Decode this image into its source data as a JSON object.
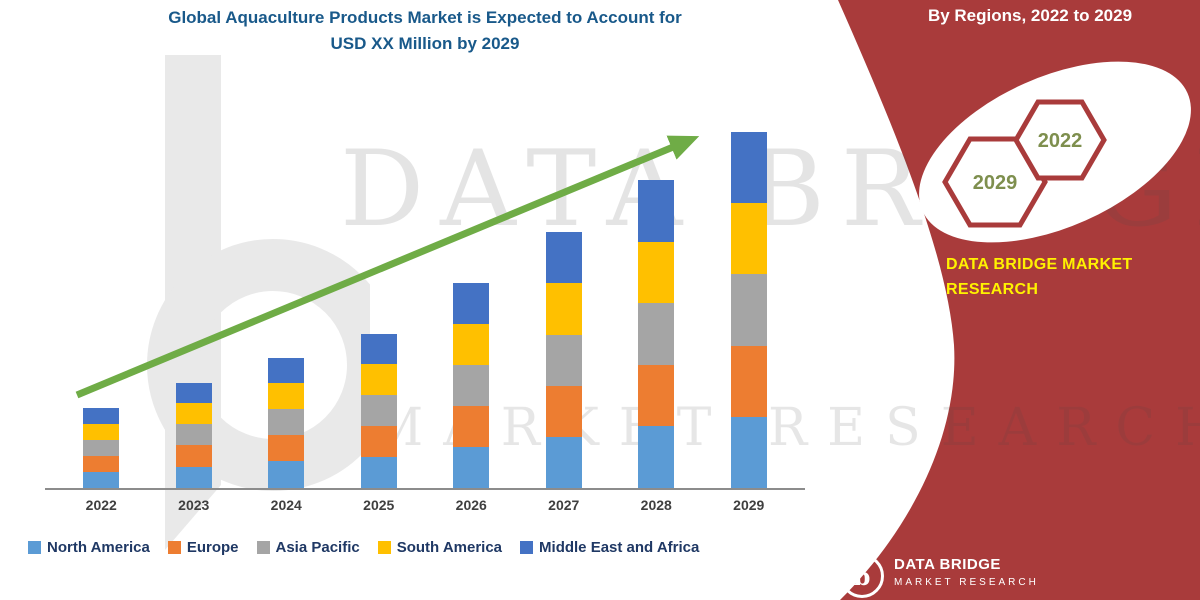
{
  "title": {
    "line1": "Global Aquaculture Products Market is Expected to Account for",
    "line2": "USD XX Million by 2029"
  },
  "banner": {
    "heading": "By Regions, 2022 to 2029",
    "hexagons": [
      {
        "label": "2029"
      },
      {
        "label": "2022"
      }
    ],
    "brand_line1": "DATA BRIDGE MARKET",
    "brand_line2": "RESEARCH",
    "colors": {
      "background": "#A93B3B",
      "heading_text": "#FFFFFF",
      "brand_text": "#FFF200",
      "hexagon_border": "#A93B3B",
      "hexagon_text": "#7E8F4E"
    }
  },
  "watermark": {
    "line1": "DATA BRIDGE",
    "line2": "MARKET RESEARCH"
  },
  "footer_logo": {
    "glyph": "b",
    "name": "DATA BRIDGE",
    "subtitle": "MARKET RESEARCH"
  },
  "chart_data": {
    "type": "bar",
    "stacked": true,
    "title": "Global Aquaculture Products Market is Expected to Account for USD XX Million by 2029",
    "xlabel": "",
    "ylabel": "",
    "ylim": [
      0,
      100
    ],
    "gridlines": false,
    "legend_position": "bottom",
    "categories": [
      "2022",
      "2023",
      "2024",
      "2025",
      "2026",
      "2027",
      "2028",
      "2029"
    ],
    "series": [
      {
        "name": "North America",
        "color": "#5B9BD5",
        "values": [
          4.5,
          6.0,
          7.5,
          8.7,
          11.6,
          14.4,
          17.3,
          20.0
        ]
      },
      {
        "name": "Europe",
        "color": "#ED7D31",
        "values": [
          4.5,
          6.0,
          7.5,
          8.7,
          11.5,
          14.4,
          17.3,
          20.0
        ]
      },
      {
        "name": "Asia Pacific",
        "color": "#A5A5A5",
        "values": [
          4.5,
          6.0,
          7.2,
          8.7,
          11.5,
          14.3,
          17.3,
          20.0
        ]
      },
      {
        "name": "South America",
        "color": "#FFC000",
        "values": [
          4.5,
          5.8,
          7.2,
          8.7,
          11.6,
          14.4,
          17.3,
          20.0
        ]
      },
      {
        "name": "Middle East and Africa",
        "color": "#4472C4",
        "values": [
          4.5,
          5.8,
          7.2,
          8.6,
          11.5,
          14.3,
          17.3,
          20.0
        ]
      }
    ],
    "totals_note": "values are relative estimates read from bar heights; absolute USD values shown as XX in source",
    "trend_arrow": {
      "color": "#6FAC46",
      "from_category": "2022",
      "to_category": "2029"
    }
  }
}
